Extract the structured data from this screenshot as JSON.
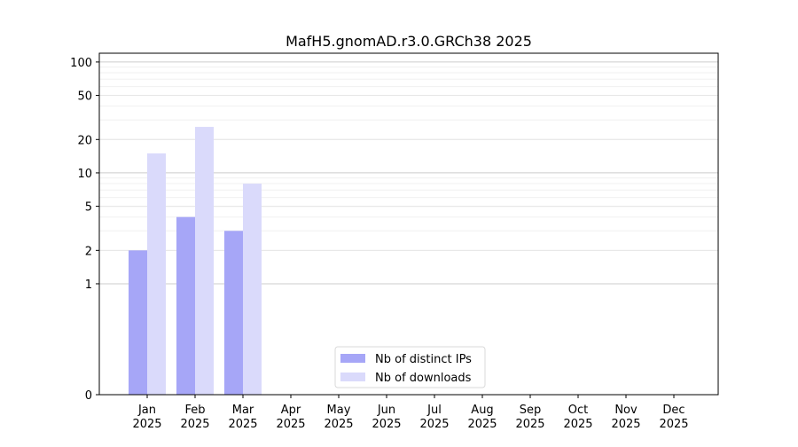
{
  "chart_data": {
    "type": "bar",
    "title": "MafH5.gnomAD.r3.0.GRCh38 2025",
    "xlabel": "",
    "ylabel": "",
    "yscale": "symlog",
    "ylim": [
      0,
      120
    ],
    "yticks": [
      0,
      1,
      2,
      5,
      10,
      20,
      50,
      100
    ],
    "grid": "horizontal",
    "legend": "bottom-center",
    "categories": [
      "Jan\n2025",
      "Feb\n2025",
      "Mar\n2025",
      "Apr\n2025",
      "May\n2025",
      "Jun\n2025",
      "Jul\n2025",
      "Aug\n2025",
      "Sep\n2025",
      "Oct\n2025",
      "Nov\n2025",
      "Dec\n2025"
    ],
    "series": [
      {
        "name": "Nb of distinct IPs",
        "color": "#a6a6f7",
        "values": [
          2,
          4,
          3,
          0,
          0,
          0,
          0,
          0,
          0,
          0,
          0,
          0
        ]
      },
      {
        "name": "Nb of downloads",
        "color": "#dadafb",
        "values": [
          15,
          26,
          8,
          0,
          0,
          0,
          0,
          0,
          0,
          0,
          0,
          0
        ]
      }
    ]
  }
}
